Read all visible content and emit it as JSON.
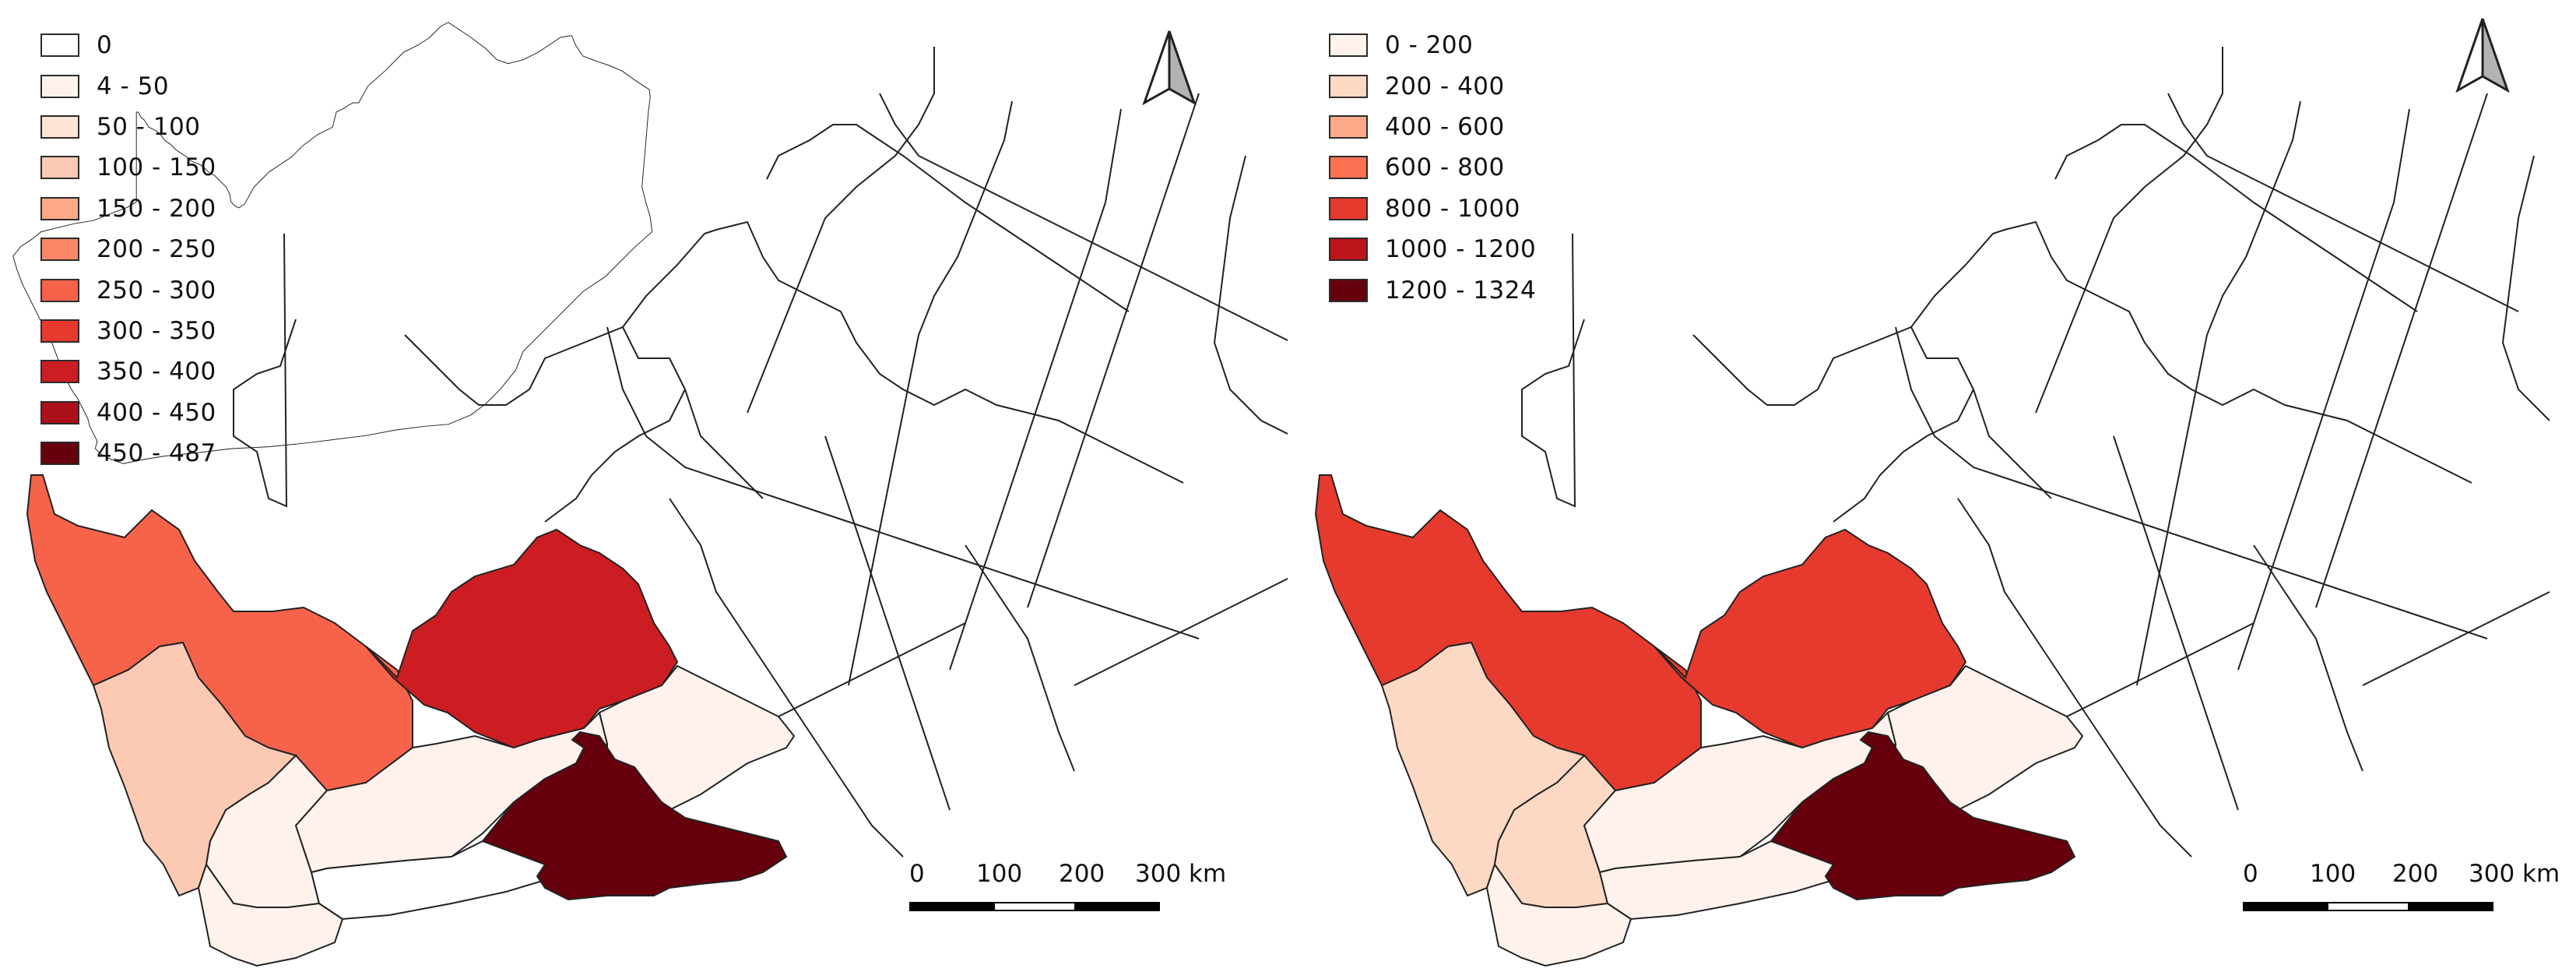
{
  "maps": [
    {
      "legend": [
        {
          "label": "0",
          "color": "#ffffff"
        },
        {
          "label": "4 - 50",
          "color": "#fff2ed"
        },
        {
          "label": "50 - 100",
          "color": "#fee3d7"
        },
        {
          "label": "100 - 150",
          "color": "#fcc9b2"
        },
        {
          "label": "150 - 200",
          "color": "#fca98a"
        },
        {
          "label": "200 - 250",
          "color": "#fb8766"
        },
        {
          "label": "250 - 300",
          "color": "#f6634a"
        },
        {
          "label": "300 - 350",
          "color": "#e73a2f"
        },
        {
          "label": "350 - 400",
          "color": "#cc1e22"
        },
        {
          "label": "400 - 450",
          "color": "#ac1018"
        },
        {
          "label": "450 - 487",
          "color": "#67000d"
        }
      ],
      "regions": {
        "namakwa": "#f6634a",
        "pixley-ka-seme": "#cc1e22",
        "west-coast": "#fcc9b2",
        "cape-winelands": "#fff2ed",
        "central-karoo": "#fff2ed",
        "sarah-baartman": "#fff2ed",
        "cacadu-east": "#fff2ed",
        "overberg": "#fff2ed",
        "eden": "#ffffff",
        "chris-hani": "#67000d"
      },
      "scale": {
        "ticks": [
          "0",
          "100",
          "200",
          "300 km"
        ]
      }
    },
    {
      "legend": [
        {
          "label": "0 - 200",
          "color": "#fff2ed"
        },
        {
          "label": "200 - 400",
          "color": "#fdd8c4"
        },
        {
          "label": "400 - 600",
          "color": "#fca98a"
        },
        {
          "label": "600 - 800",
          "color": "#fb7151"
        },
        {
          "label": "800 - 1000",
          "color": "#e73a2f"
        },
        {
          "label": "1000 - 1200",
          "color": "#bd151c"
        },
        {
          "label": "1200 - 1324",
          "color": "#67000d"
        }
      ],
      "regions": {
        "namakwa": "#e73a2f",
        "pixley-ka-seme": "#e73a2f",
        "west-coast": "#fdd8c4",
        "cape-winelands": "#fdd8c4",
        "central-karoo": "#fff2ed",
        "sarah-baartman": "#fff2ed",
        "cacadu-east": "#fff2ed",
        "overberg": "#fff2ed",
        "eden": "#fff2ed",
        "chris-hani": "#67000d"
      },
      "scale": {
        "ticks": [
          "0",
          "100",
          "200",
          "300 km"
        ]
      }
    }
  ]
}
